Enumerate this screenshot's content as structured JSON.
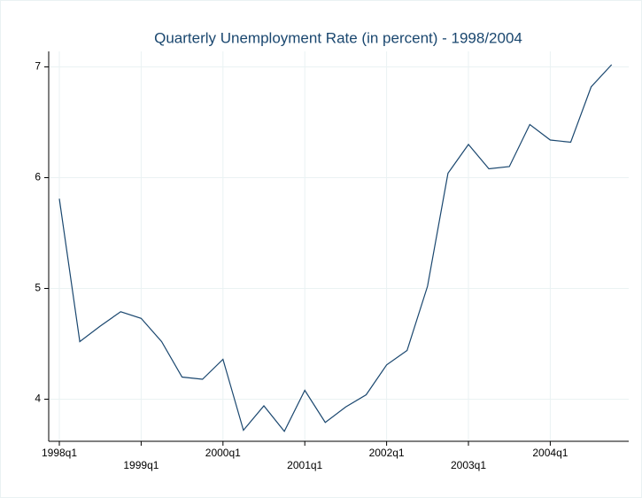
{
  "chart_data": {
    "type": "line",
    "title": "Quarterly Unemployment Rate (in percent) - 1998/2004",
    "categories": [
      "1998q1",
      null,
      null,
      null,
      "1999q1",
      null,
      null,
      null,
      "2000q1",
      null,
      null,
      null,
      "2001q1",
      null,
      null,
      null,
      "2002q1",
      null,
      null,
      null,
      "2003q1",
      null,
      null,
      null,
      "2004q1",
      null,
      null,
      null
    ],
    "series": [
      {
        "color": "#1a476f",
        "values": [
          5.81,
          4.52,
          4.66,
          4.79,
          4.73,
          4.52,
          4.2,
          4.18,
          4.36,
          3.72,
          3.94,
          3.71,
          4.08,
          3.79,
          3.93,
          4.04,
          4.31,
          4.44,
          5.02,
          6.04,
          6.3,
          6.08,
          6.1,
          6.48,
          6.34,
          6.32,
          6.82,
          7.02
        ]
      }
    ],
    "ylim": [
      3.62,
      7.14
    ],
    "yticks": [
      4,
      5,
      6,
      7
    ],
    "grid": true
  }
}
